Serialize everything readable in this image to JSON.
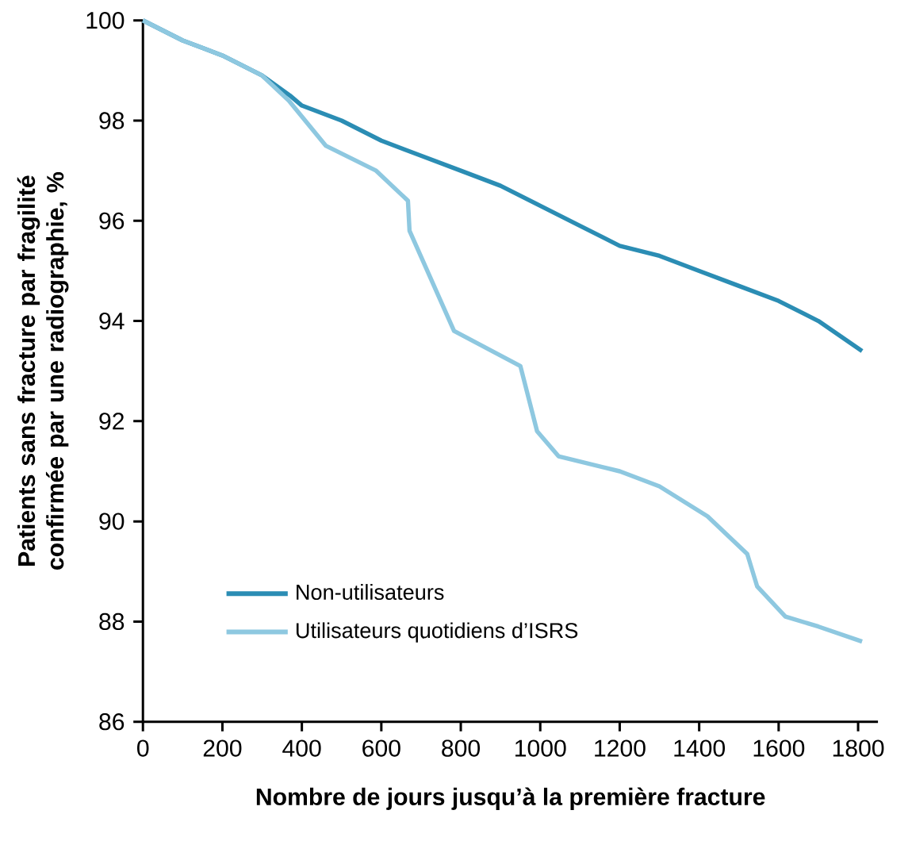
{
  "chart_data": {
    "type": "line",
    "xlabel": "Nombre de jours jusqu’à la première fracture",
    "ylabel": "Patients sans fracture par fragilité confirmée par une radiographie, %",
    "xlim": [
      0,
      1850
    ],
    "ylim": [
      86,
      100
    ],
    "xticks": [
      0,
      200,
      400,
      600,
      800,
      1000,
      1200,
      1400,
      1600,
      1800
    ],
    "yticks": [
      86,
      88,
      90,
      92,
      94,
      96,
      98,
      100
    ],
    "legend": "bottom left",
    "grid": false,
    "marker": "none",
    "line_style": "solid",
    "series": [
      {
        "name": "Non-utilisateurs",
        "color": "#2b8db4",
        "x": [
          0,
          100,
          200,
          300,
          370,
          400,
          500,
          600,
          700,
          800,
          900,
          1000,
          1100,
          1200,
          1300,
          1400,
          1500,
          1600,
          1700,
          1810
        ],
        "values": [
          100,
          99.6,
          99.3,
          98.9,
          98.5,
          98.3,
          98.0,
          97.6,
          97.3,
          97.0,
          96.7,
          96.3,
          95.9,
          95.5,
          95.3,
          95.0,
          94.7,
          94.4,
          94.0,
          93.4
        ]
      },
      {
        "name": "Utilisateurs quotidiens d’ISRS",
        "color": "#8ec8e0",
        "x": [
          0,
          100,
          200,
          300,
          367,
          460,
          587,
          667,
          671,
          783,
          950,
          992,
          1046,
          1200,
          1300,
          1421,
          1521,
          1546,
          1617,
          1700,
          1810
        ],
        "values": [
          100,
          99.6,
          99.3,
          98.9,
          98.4,
          97.5,
          97.0,
          96.4,
          95.8,
          93.8,
          93.1,
          91.8,
          91.3,
          91.0,
          90.7,
          90.1,
          89.35,
          88.7,
          88.1,
          87.9,
          87.6
        ]
      }
    ]
  }
}
